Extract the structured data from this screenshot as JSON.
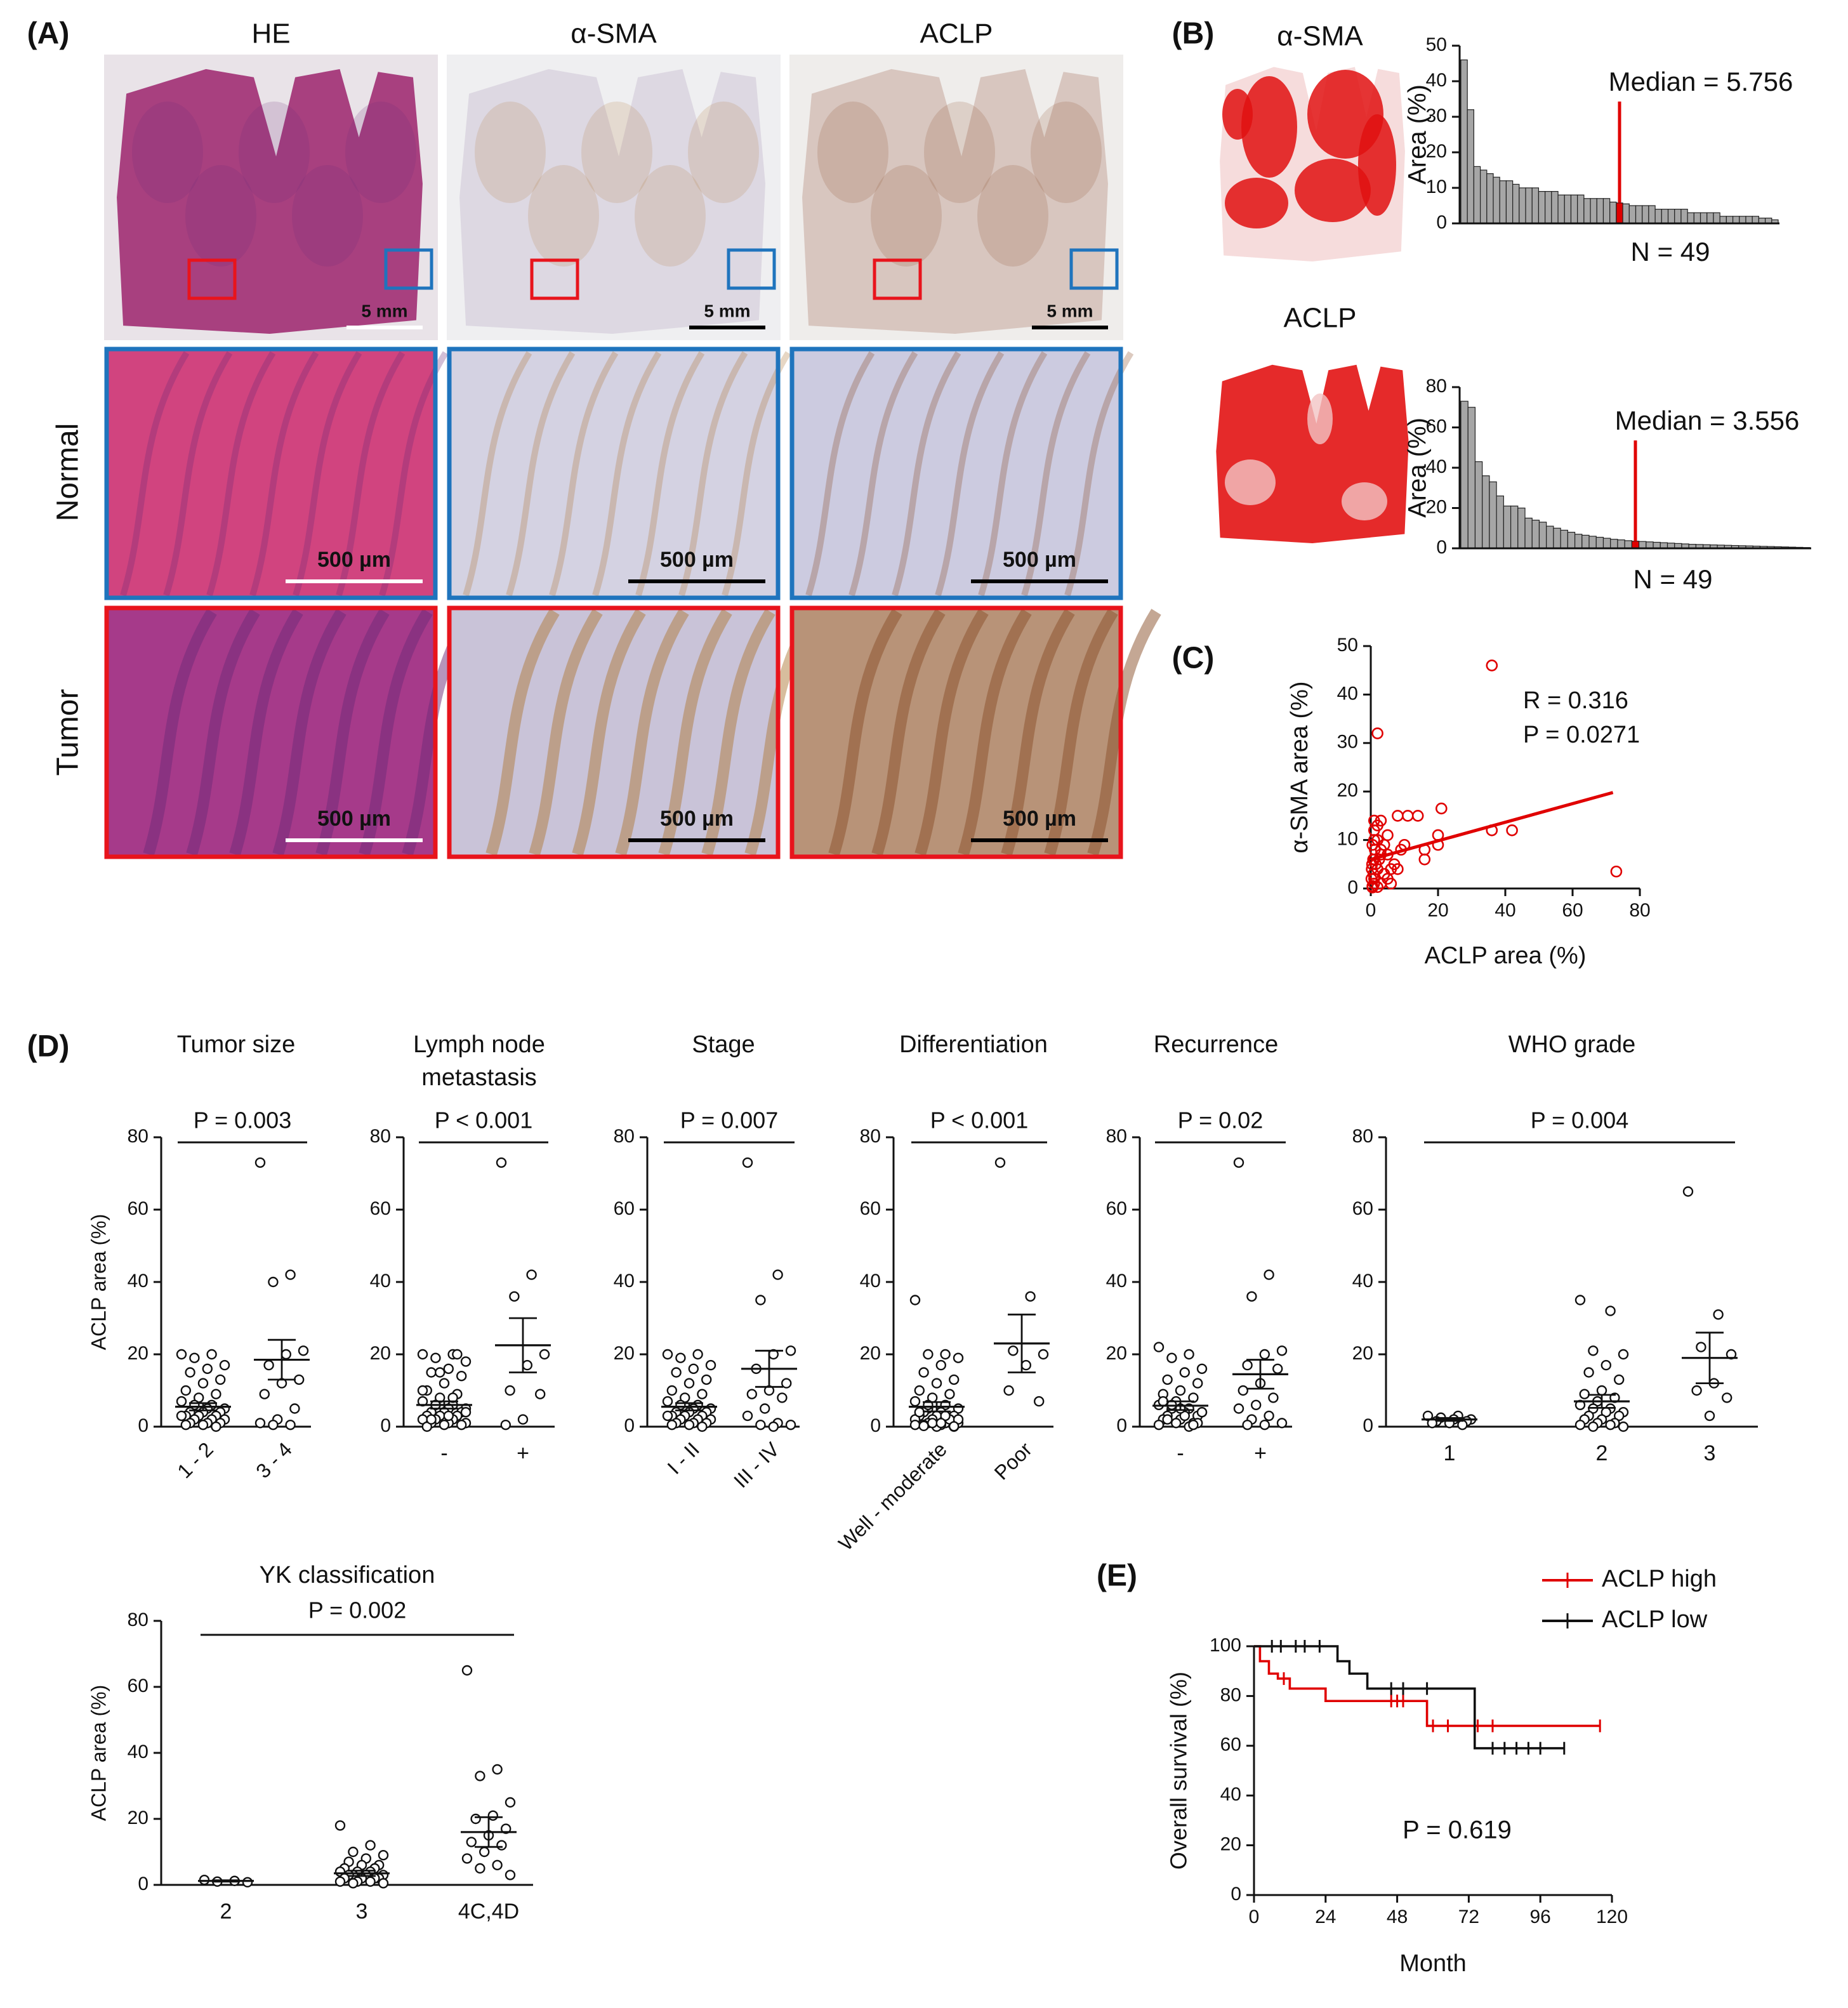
{
  "panel_labels": [
    "(A)",
    "(B)",
    "(C)",
    "(D)",
    "(E)"
  ],
  "panel_a": {
    "columns": [
      "HE",
      "α-SMA",
      "ACLP"
    ],
    "rows": [
      "Normal",
      "Tumor"
    ],
    "scale_bar_overview": "5 mm",
    "scale_bar_zoom": "500 µm"
  },
  "chart_data": [
    {
      "type": "bar",
      "title": "α-SMA",
      "ylabel": "Area (%)",
      "values": [
        46,
        32,
        16,
        15,
        14,
        13,
        12,
        12,
        11,
        10,
        10,
        10,
        9,
        9,
        9,
        8,
        8,
        8,
        8,
        7,
        7,
        7,
        7,
        6,
        5.756,
        5.5,
        5,
        5,
        5,
        5,
        4,
        4,
        4,
        4,
        4,
        3,
        3,
        3,
        3,
        3,
        2,
        2,
        2,
        2,
        2,
        2,
        1.5,
        1.5,
        1
      ],
      "color": "#a6a6a6",
      "highlight_color": "#e00000",
      "median": 5.756,
      "median_label": "Median = 5.756",
      "n_label": "N = 49",
      "ylim": [
        0,
        50
      ],
      "yticks": [
        0,
        10,
        20,
        30,
        40,
        50
      ]
    },
    {
      "type": "bar",
      "title": "ACLP",
      "ylabel": "Area (%)",
      "values": [
        73,
        70,
        43,
        36,
        33,
        26,
        21,
        21,
        20,
        15,
        14,
        13,
        11,
        10,
        9,
        8,
        7,
        6.5,
        6,
        5.5,
        5,
        4.5,
        4.2,
        3.8,
        3.556,
        3.4,
        3.2,
        3,
        2.8,
        2.6,
        2.4,
        2.2,
        2,
        1.9,
        1.8,
        1.7,
        1.6,
        1.5,
        1.4,
        1.3,
        1.2,
        1.1,
        1,
        0.9,
        0.8,
        0.7,
        0.6,
        0.5,
        0.4
      ],
      "color": "#a6a6a6",
      "highlight_color": "#e00000",
      "median": 3.556,
      "median_label": "Median = 3.556",
      "n_label": "N = 49",
      "ylim": [
        0,
        80
      ],
      "yticks": [
        0,
        20,
        40,
        60,
        80
      ]
    },
    {
      "type": "scatter",
      "xlabel": "ACLP area (%)",
      "ylabel": "α-SMA area (%)",
      "annotations": [
        "R = 0.316",
        "P = 0.0271"
      ],
      "color": "#e00000",
      "x": [
        36,
        2,
        73,
        42,
        36,
        21,
        20,
        20,
        14,
        16,
        16,
        11,
        8,
        5,
        3,
        1,
        2,
        1,
        0.5,
        3,
        1,
        2,
        4,
        6,
        3,
        5,
        1,
        0.5,
        7,
        9,
        5,
        0.3,
        0.8,
        1.5,
        2.5,
        0.2,
        4,
        6,
        1,
        0.5,
        2,
        3,
        1.2,
        0.7,
        8,
        10,
        2,
        1,
        0.4
      ],
      "values": [
        46,
        32,
        3.5,
        12,
        12,
        16.5,
        9,
        11,
        15,
        8,
        6,
        15,
        15,
        11,
        14,
        14,
        13,
        10,
        9,
        8,
        6,
        4,
        3,
        1,
        1,
        2,
        2,
        0.5,
        5,
        8,
        7,
        4,
        3,
        5,
        6,
        2,
        9,
        4,
        1,
        0.2,
        0.3,
        7,
        8,
        6,
        4,
        9,
        10,
        12,
        5
      ],
      "trend_line": {
        "x": [
          0,
          72
        ],
        "y": [
          6,
          19.8
        ]
      },
      "xlim": [
        0,
        80
      ],
      "xticks": [
        0,
        20,
        40,
        60,
        80
      ],
      "ylim": [
        0,
        50
      ],
      "yticks": [
        0,
        10,
        20,
        30,
        40,
        50
      ]
    },
    {
      "type": "dot",
      "title": "Tumor size",
      "ylabel": "ACLP area (%)",
      "p_label": "P = 0.003",
      "categories": [
        "1 - 2",
        "3 - 4"
      ],
      "values": [
        [
          20,
          20,
          19,
          17,
          16,
          15,
          13,
          12,
          10,
          9,
          8,
          7,
          6,
          6,
          5,
          5,
          4,
          4,
          4,
          3,
          3,
          3,
          3,
          2,
          2,
          2,
          1,
          1,
          1,
          0.5,
          0.5,
          0
        ],
        [
          73,
          42,
          40,
          21,
          20,
          17,
          13,
          12,
          9,
          5,
          2,
          1,
          0.5,
          0.5
        ]
      ],
      "mean": [
        5.5,
        18.5
      ],
      "sem": [
        1,
        5.5
      ],
      "ylim": [
        0,
        80
      ],
      "yticks": [
        0,
        20,
        40,
        60,
        80
      ]
    },
    {
      "type": "dot",
      "title": [
        "Lymph node",
        "metastasis"
      ],
      "p_label": "P < 0.001",
      "categories": [
        "-",
        "+"
      ],
      "values": [
        [
          20,
          20,
          19,
          18,
          16,
          15,
          14,
          12,
          10,
          9,
          8,
          7,
          6,
          6,
          5,
          5,
          4,
          4,
          4,
          3,
          3,
          3,
          2,
          2,
          2,
          1,
          1,
          1,
          0.5,
          0.5,
          0,
          20,
          15,
          10,
          8,
          6,
          4,
          3,
          2
        ],
        [
          73,
          42,
          36,
          20,
          17,
          10,
          9,
          2,
          0.5
        ]
      ],
      "mean": [
        6,
        22.5
      ],
      "sem": [
        1,
        7.5
      ],
      "ylim": [
        0,
        80
      ],
      "yticks": [
        0,
        20,
        40,
        60,
        80
      ]
    },
    {
      "type": "dot",
      "title": "Stage",
      "p_label": "P = 0.007",
      "categories": [
        "I - II",
        "III - IV"
      ],
      "values": [
        [
          20,
          20,
          19,
          17,
          16,
          15,
          13,
          12,
          10,
          9,
          8,
          7,
          6,
          6,
          5,
          5,
          4,
          4,
          4,
          3,
          3,
          3,
          3,
          2,
          2,
          2,
          1,
          1,
          1,
          0.5,
          0.5,
          0
        ],
        [
          73,
          42,
          35,
          21,
          20,
          16,
          12,
          10,
          9,
          8,
          5,
          3,
          1,
          0.5,
          0.5,
          0
        ]
      ],
      "mean": [
        5.5,
        16
      ],
      "sem": [
        1,
        5
      ],
      "ylim": [
        0,
        80
      ],
      "yticks": [
        0,
        20,
        40,
        60,
        80
      ]
    },
    {
      "type": "dot",
      "title": "Differentiation",
      "p_label": "P < 0.001",
      "categories": [
        "Well - moderate",
        "Poor"
      ],
      "values": [
        [
          35,
          20,
          20,
          19,
          17,
          15,
          13,
          12,
          10,
          9,
          8,
          7,
          6,
          5,
          5,
          4,
          4,
          3,
          3,
          3,
          2,
          2,
          2,
          1,
          1,
          1,
          0.5,
          0.5,
          0,
          0,
          4,
          2,
          1,
          0.5,
          3,
          6,
          2,
          1,
          0.2,
          0.1
        ],
        [
          73,
          36,
          21,
          20,
          17,
          10,
          7
        ]
      ],
      "mean": [
        5.5,
        23
      ],
      "sem": [
        1.3,
        8
      ],
      "ylim": [
        0,
        80
      ],
      "yticks": [
        0,
        20,
        40,
        60,
        80
      ]
    },
    {
      "type": "dot",
      "title": "Recurrence",
      "p_label": "P = 0.02",
      "categories": [
        "-",
        "+"
      ],
      "values": [
        [
          22,
          20,
          19,
          16,
          15,
          13,
          12,
          10,
          9,
          8,
          7,
          6,
          5,
          5,
          4,
          4,
          3,
          3,
          2,
          2,
          1,
          1,
          0.5,
          0,
          6,
          4,
          3,
          2,
          1,
          5,
          7,
          0.5
        ],
        [
          73,
          42,
          36,
          21,
          20,
          17,
          16,
          12,
          10,
          8,
          6,
          5,
          3,
          2,
          1,
          0.5,
          0.5
        ]
      ],
      "mean": [
        5.8,
        14.5
      ],
      "sem": [
        1.2,
        4
      ],
      "ylim": [
        0,
        80
      ],
      "yticks": [
        0,
        20,
        40,
        60,
        80
      ]
    },
    {
      "type": "dot",
      "title": "WHO grade",
      "p_label": "P = 0.004",
      "categories": [
        "1",
        "2",
        "3"
      ],
      "values": [
        [
          3,
          3,
          2.5,
          2,
          2,
          1.5,
          1.5,
          1,
          1,
          0.5
        ],
        [
          35,
          32,
          21,
          20,
          17,
          15,
          13,
          10,
          9,
          8,
          7,
          6,
          5,
          5,
          4,
          4,
          3,
          3,
          2,
          2,
          1,
          1,
          0.5,
          0.5,
          0,
          0
        ],
        [
          65,
          31,
          22,
          20,
          12,
          10,
          8,
          3
        ]
      ],
      "mean": [
        2,
        7,
        19
      ],
      "sem": [
        0.4,
        1.8,
        7
      ],
      "ylim": [
        0,
        80
      ],
      "yticks": [
        0,
        20,
        40,
        60,
        80
      ]
    },
    {
      "type": "dot",
      "title": "YK classification",
      "ylabel": "ACLP area (%)",
      "p_label": "P = 0.002",
      "categories": [
        "2",
        "3",
        "4C,4D"
      ],
      "values": [
        [
          1.5,
          1.2,
          1,
          0.8
        ],
        [
          18,
          12,
          10,
          9,
          8,
          7,
          6,
          6,
          5,
          5,
          4,
          4,
          4,
          3,
          3,
          3,
          3,
          2,
          2,
          2,
          2,
          1,
          1,
          1,
          0.5,
          0.5
        ],
        [
          65,
          35,
          33,
          25,
          21,
          20,
          17,
          15,
          13,
          12,
          10,
          8,
          6,
          5,
          3
        ]
      ],
      "mean": [
        1.2,
        3.5,
        16
      ],
      "sem": [
        0.2,
        0.8,
        4.5
      ],
      "ylim": [
        0,
        80
      ],
      "yticks": [
        0,
        20,
        40,
        60,
        80
      ]
    },
    {
      "type": "survival",
      "xlabel": "Month",
      "ylabel": "Overall survival (%)",
      "annotation": "P = 0.619",
      "series": [
        {
          "name": "ACLP high",
          "color": "#e00000",
          "x": [
            0,
            2,
            5,
            8,
            12,
            20,
            24,
            56,
            58,
            116
          ],
          "values": [
            100,
            94,
            89,
            87,
            83,
            83,
            78,
            78,
            68,
            68
          ],
          "censored": [
            10,
            46,
            48,
            50,
            60,
            65,
            75,
            80,
            116
          ]
        },
        {
          "name": "ACLP low",
          "color": "#111111",
          "x": [
            0,
            28,
            32,
            38,
            72,
            74,
            104
          ],
          "values": [
            100,
            94,
            89,
            83,
            83,
            59,
            59
          ],
          "censored": [
            6,
            9,
            14,
            17,
            22,
            46,
            50,
            58,
            80,
            84,
            88,
            92,
            96,
            104
          ]
        }
      ],
      "xlim": [
        0,
        120
      ],
      "xticks": [
        0,
        24,
        48,
        72,
        96,
        120
      ],
      "ylim": [
        0,
        100
      ],
      "yticks": [
        0,
        20,
        40,
        60,
        80,
        100
      ]
    }
  ]
}
